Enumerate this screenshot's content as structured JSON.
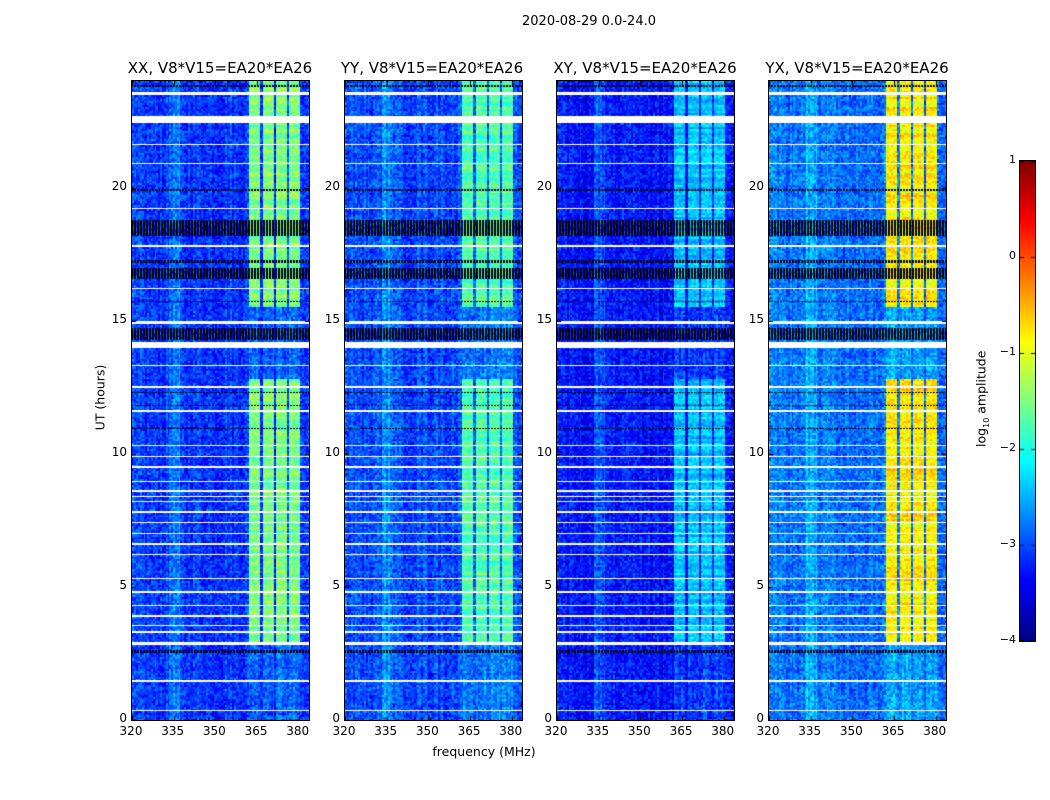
{
  "chart_data": {
    "type": "heatmap",
    "title": "2020-08-29 0.0-24.0",
    "xlabel": "frequency (MHz)",
    "ylabel": "UT (hours)",
    "xlim": [
      320,
      383.7
    ],
    "ylim": [
      0,
      24
    ],
    "xticks": [
      "320",
      "335",
      "350",
      "365",
      "380"
    ],
    "yticks": [
      "0",
      "5",
      "10",
      "15",
      "20"
    ],
    "colorbar": {
      "label_prefix": "log",
      "label_sub": "10",
      "label_suffix": " amplitude",
      "colormap": "jet",
      "range": [
        -4,
        1
      ],
      "ticks": [
        "1",
        "0",
        "−1",
        "−2",
        "−3",
        "−4"
      ]
    },
    "panels": [
      {
        "title": "XX, V8*V15=EA20*EA26",
        "background_level": -3.2,
        "band_peak_level": -1.3
      },
      {
        "title": "YY, V8*V15=EA20*EA26",
        "background_level": -3.1,
        "band_peak_level": -1.5
      },
      {
        "title": "XY, V8*V15=EA20*EA26",
        "background_level": -3.4,
        "band_peak_level": -2.2
      },
      {
        "title": "YX, V8*V15=EA20*EA26",
        "background_level": -2.9,
        "band_peak_level": -0.6
      }
    ],
    "bright_band_mhz": [
      [
        362,
        366
      ],
      [
        367,
        371
      ],
      [
        372,
        375.5
      ],
      [
        376.5,
        380.5
      ]
    ],
    "band_active_hours": [
      [
        2.9,
        12.8
      ],
      [
        15.5,
        24
      ]
    ],
    "flagged_white_hours": [
      [
        0.35,
        0.4
      ],
      [
        1.45,
        1.52
      ],
      [
        2.85,
        2.95
      ],
      [
        3.3,
        3.35
      ],
      [
        3.55,
        3.6
      ],
      [
        3.9,
        3.95
      ],
      [
        4.3,
        4.35
      ],
      [
        4.8,
        4.85
      ],
      [
        5.3,
        5.35
      ],
      [
        6.2,
        6.27
      ],
      [
        6.6,
        6.65
      ],
      [
        7.0,
        7.06
      ],
      [
        7.4,
        7.45
      ],
      [
        7.8,
        7.85
      ],
      [
        8.2,
        8.25
      ],
      [
        8.4,
        8.45
      ],
      [
        8.6,
        8.65
      ],
      [
        8.95,
        9.0
      ],
      [
        9.5,
        9.55
      ],
      [
        9.9,
        9.95
      ],
      [
        10.3,
        10.35
      ],
      [
        11.6,
        11.65
      ],
      [
        12.5,
        12.55
      ],
      [
        13.3,
        13.35
      ],
      [
        14.0,
        14.2
      ],
      [
        14.9,
        15.0
      ],
      [
        16.2,
        16.25
      ],
      [
        17.8,
        17.85
      ],
      [
        19.2,
        19.25
      ],
      [
        20.9,
        20.95
      ],
      [
        21.6,
        21.65
      ],
      [
        22.45,
        22.7
      ],
      [
        23.5,
        23.6
      ]
    ],
    "flagged_black_hours": [
      [
        2.55,
        2.65
      ],
      [
        10.95,
        11.0
      ],
      [
        11.8,
        11.85
      ],
      [
        12.3,
        12.35
      ],
      [
        14.3,
        14.75
      ],
      [
        15.7,
        15.75
      ],
      [
        16.6,
        17.0
      ],
      [
        17.2,
        17.3
      ],
      [
        18.2,
        18.8
      ],
      [
        19.9,
        19.95
      ],
      [
        23.8,
        23.85
      ]
    ]
  }
}
